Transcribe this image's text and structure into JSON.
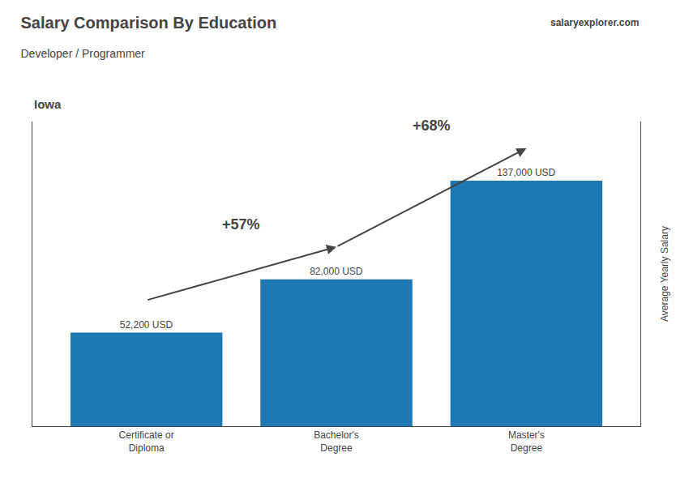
{
  "chart_data": {
    "type": "bar",
    "title": "Salary Comparison By Education",
    "subtitle": "Developer / Programmer",
    "location": "Iowa",
    "watermark": "salaryexplorer.com",
    "ylabel": "Average Yearly Salary",
    "categories": [
      "Certificate or\nDiploma",
      "Bachelor's\nDegree",
      "Master's\nDegree"
    ],
    "values": [
      52200,
      82000,
      137000
    ],
    "value_labels": [
      "52,200 USD",
      "82,000 USD",
      "137,000 USD"
    ],
    "data_labels": true,
    "annotations": [
      "+57%",
      "+68%"
    ],
    "ylim": [
      0,
      170000
    ],
    "grid": false,
    "tick_labels": "x"
  }
}
